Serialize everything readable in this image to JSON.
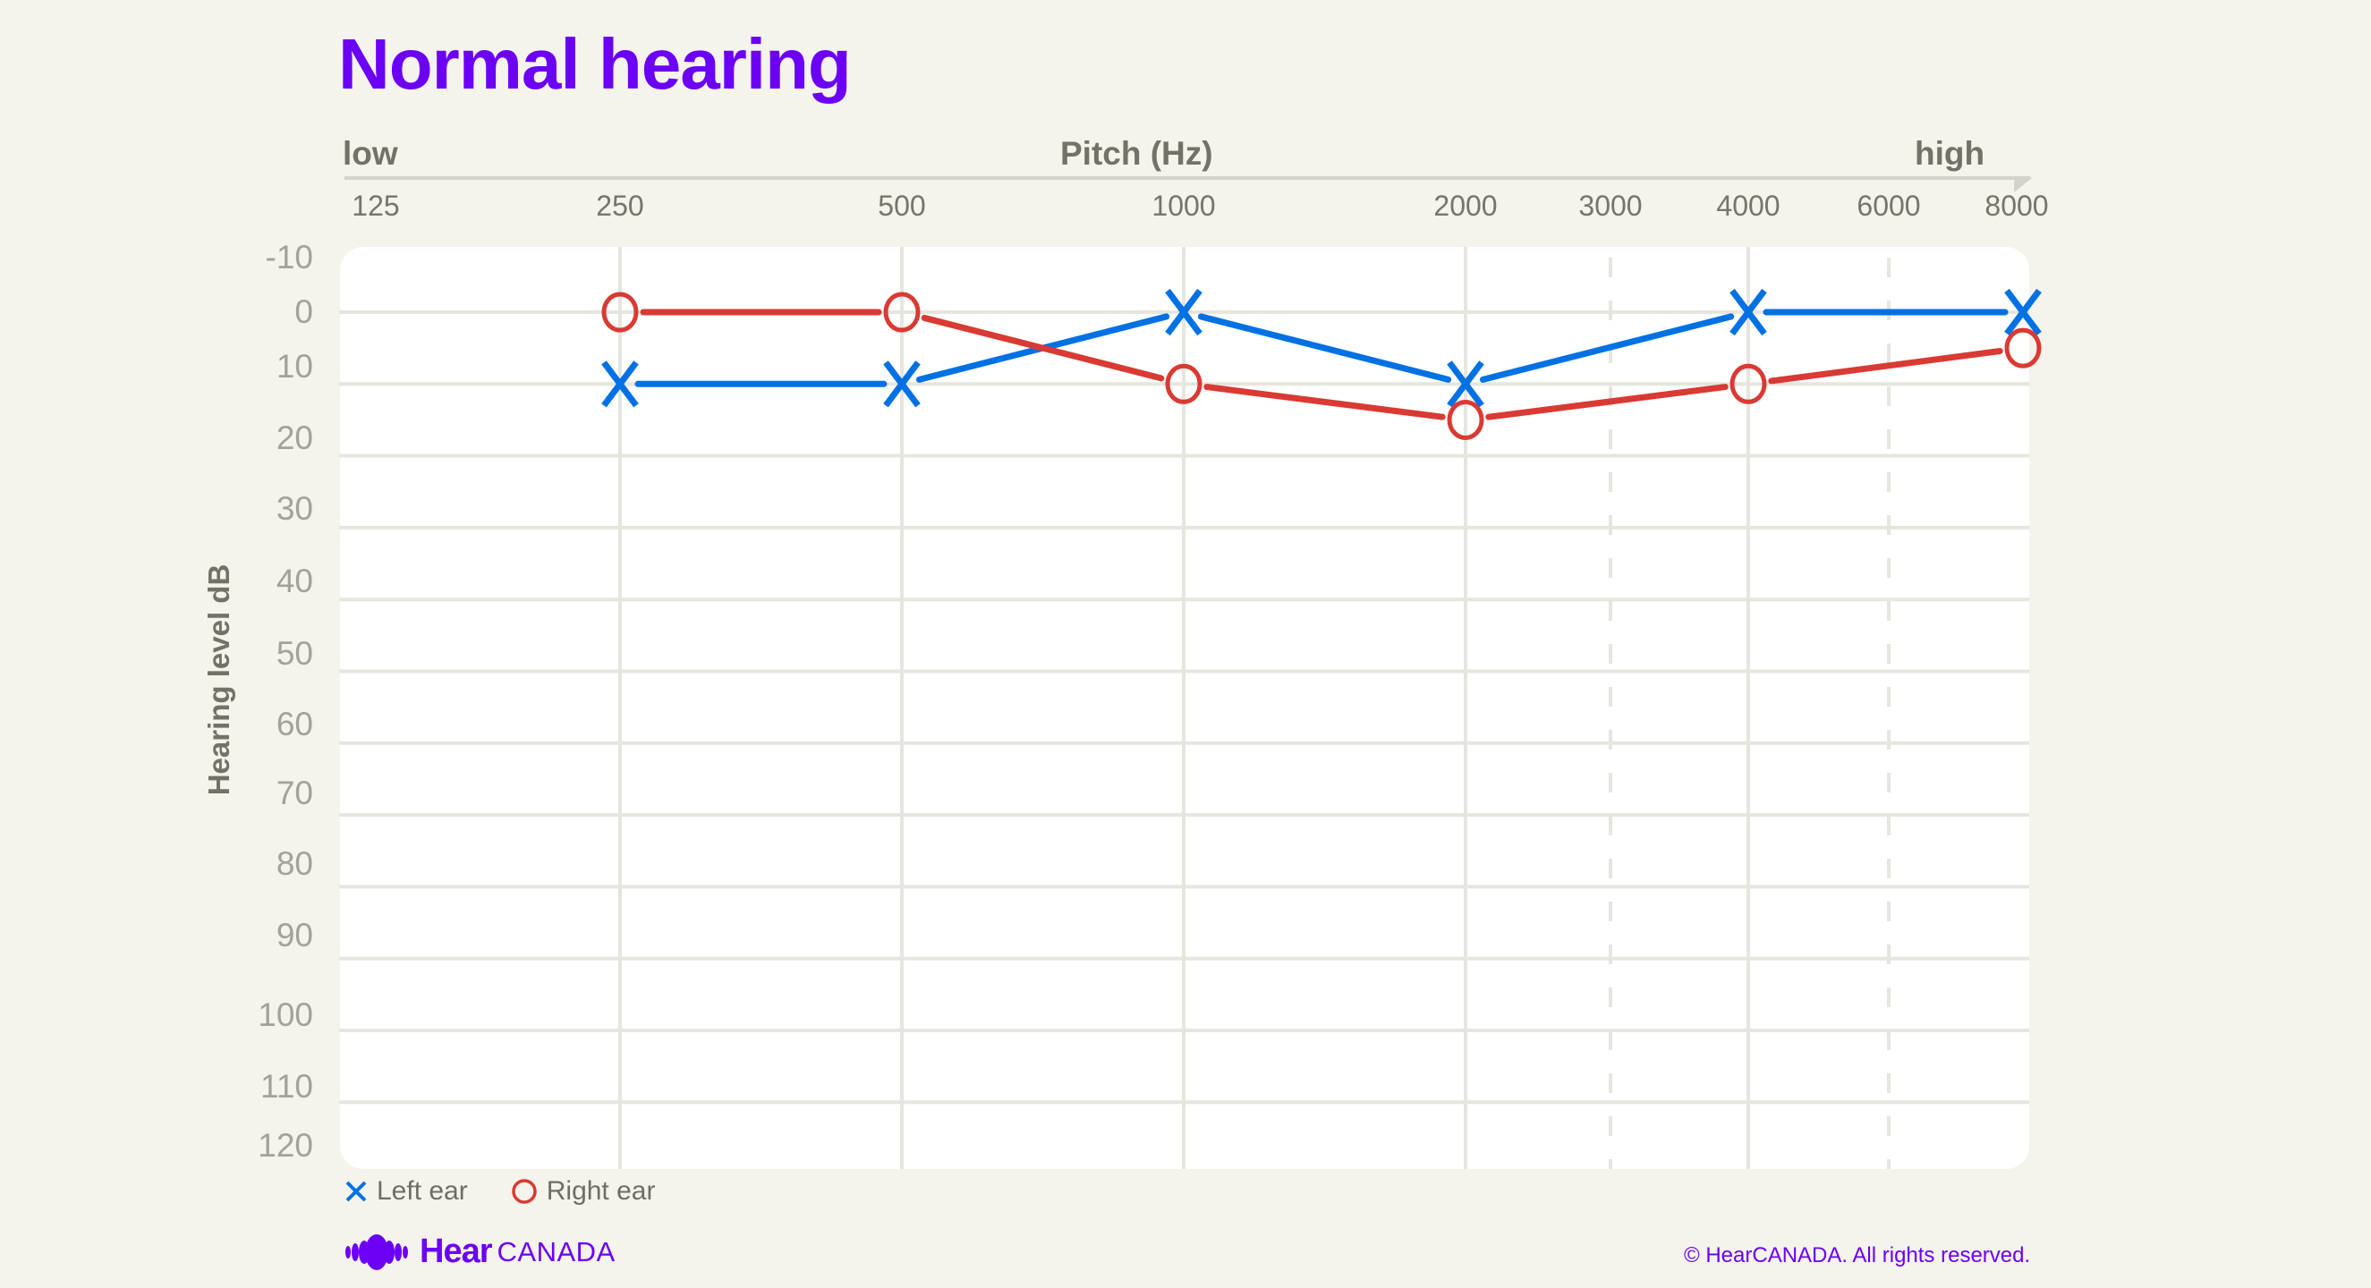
{
  "title": "Normal hearing",
  "x_axis": {
    "low_label": "low",
    "title": "Pitch (Hz)",
    "high_label": "high",
    "ticks": [
      "125",
      "250",
      "500",
      "1000",
      "2000",
      "3000",
      "4000",
      "6000",
      "8000"
    ]
  },
  "y_axis": {
    "title": "Hearing level dB",
    "ticks": [
      "-10",
      "0",
      "10",
      "20",
      "30",
      "40",
      "50",
      "60",
      "70",
      "80",
      "90",
      "100",
      "110",
      "120"
    ]
  },
  "legend": {
    "left": "Left ear",
    "right": "Right ear"
  },
  "colors": {
    "title": "#6b00f5",
    "left_ear": "#0071e3",
    "right_ear": "#d93a33",
    "grid": "#e6e5de",
    "background": "#f4f3ec",
    "panel": "#ffffff"
  },
  "brand": {
    "hear": "Hear",
    "canada": "CANADA"
  },
  "copyright": "© HearCANADA. All rights reserved.",
  "chart_data": {
    "type": "line",
    "title": "Normal hearing",
    "xlabel": "Pitch (Hz)",
    "ylabel": "Hearing level dB",
    "x_scale": "log (audiogram)",
    "x": [
      250,
      500,
      1000,
      2000,
      4000,
      8000
    ],
    "x_ticks": [
      125,
      250,
      500,
      1000,
      2000,
      3000,
      4000,
      6000,
      8000
    ],
    "ylim": [
      -10,
      120
    ],
    "y_inverted": true,
    "grid": true,
    "legend_position": "bottom-left",
    "series": [
      {
        "name": "Left ear",
        "marker": "x",
        "color": "#0071e3",
        "values": [
          10,
          10,
          0,
          10,
          0,
          0
        ]
      },
      {
        "name": "Right ear",
        "marker": "o",
        "color": "#d93a33",
        "values": [
          0,
          0,
          10,
          15,
          10,
          5
        ]
      }
    ]
  }
}
